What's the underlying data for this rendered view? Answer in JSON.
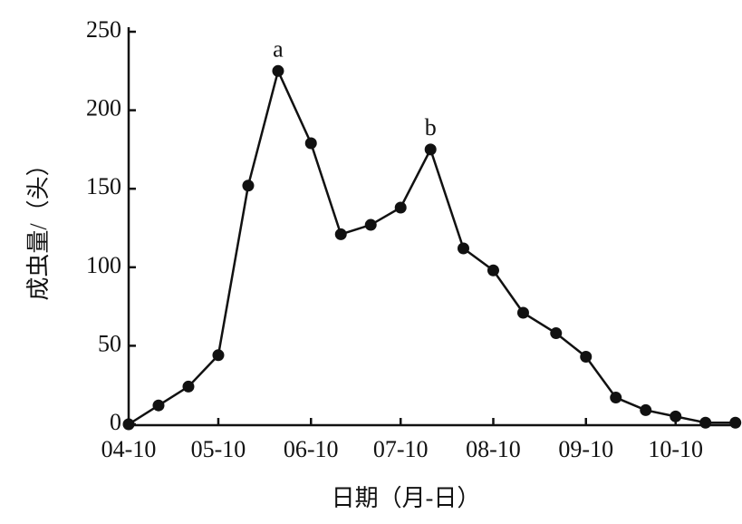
{
  "chart_data": {
    "type": "line",
    "x_label": "日期（月-日）",
    "y_label": "成虫量/（头）",
    "x": [
      "04-10",
      "04-20",
      "04-30",
      "05-10",
      "05-20",
      "05-30",
      "06-10",
      "06-20",
      "06-30",
      "07-10",
      "07-20",
      "07-31",
      "08-10",
      "08-20",
      "08-31",
      "09-10",
      "09-20",
      "09-30",
      "10-10",
      "10-20",
      "10-30"
    ],
    "values": [
      0,
      12,
      24,
      44,
      152,
      225,
      179,
      121,
      127,
      138,
      175,
      112,
      98,
      71,
      58,
      43,
      17,
      9,
      5,
      1,
      1
    ],
    "color": "#111111",
    "xlim": [
      "04-10",
      "10-31"
    ],
    "xticks": [
      "04-10",
      "05-10",
      "06-10",
      "07-10",
      "08-10",
      "09-10",
      "10-10"
    ],
    "ylim": [
      0,
      250
    ],
    "yticks": [
      0,
      50,
      100,
      150,
      200,
      250
    ],
    "annotations": [
      {
        "text": "a",
        "x": "05-30",
        "y": 225
      },
      {
        "text": "b",
        "x": "07-20",
        "y": 175
      }
    ]
  }
}
